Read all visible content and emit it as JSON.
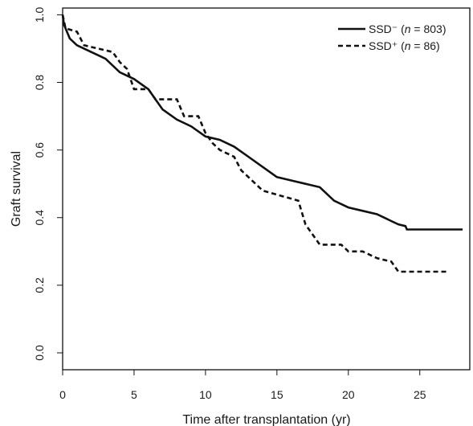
{
  "chart_data": {
    "type": "line",
    "xlabel": "Time after transplantation (yr)",
    "ylabel": "Graft survival",
    "xlim": [
      0,
      28.5
    ],
    "ylim": [
      -0.05,
      1.02
    ],
    "x_ticks": [
      "0",
      "5",
      "10",
      "15",
      "20",
      "25"
    ],
    "y_ticks": [
      "0.0",
      "0.2",
      "0.4",
      "0.6",
      "0.8",
      "1.0"
    ],
    "legend_position": "top-right",
    "series": [
      {
        "name": "SSD⁻",
        "legend_prefix": "SSD⁻ (",
        "legend_n_label": "n",
        "legend_suffix": " = 803)",
        "line_style": "solid",
        "color": "#111111",
        "points": [
          [
            0.0,
            1.0
          ],
          [
            0.1,
            0.97
          ],
          [
            0.5,
            0.93
          ],
          [
            1.0,
            0.91
          ],
          [
            2.0,
            0.89
          ],
          [
            3.0,
            0.87
          ],
          [
            4.0,
            0.83
          ],
          [
            5.0,
            0.81
          ],
          [
            6.0,
            0.78
          ],
          [
            6.5,
            0.75
          ],
          [
            7.0,
            0.72
          ],
          [
            8.0,
            0.69
          ],
          [
            9.0,
            0.67
          ],
          [
            10.0,
            0.64
          ],
          [
            11.0,
            0.63
          ],
          [
            12.0,
            0.61
          ],
          [
            13.0,
            0.58
          ],
          [
            14.0,
            0.55
          ],
          [
            15.0,
            0.52
          ],
          [
            16.0,
            0.51
          ],
          [
            17.0,
            0.5
          ],
          [
            18.0,
            0.49
          ],
          [
            19.0,
            0.45
          ],
          [
            20.0,
            0.43
          ],
          [
            21.0,
            0.42
          ],
          [
            22.0,
            0.41
          ],
          [
            22.5,
            0.4
          ],
          [
            23.0,
            0.39
          ],
          [
            23.5,
            0.38
          ],
          [
            24.0,
            0.375
          ],
          [
            24.1,
            0.365
          ],
          [
            28.0,
            0.365
          ]
        ]
      },
      {
        "name": "SSD⁺",
        "legend_prefix": "SSD⁺ (",
        "legend_n_label": "n",
        "legend_suffix": " = 86)",
        "line_style": "dashed",
        "color": "#111111",
        "points": [
          [
            0.0,
            1.0
          ],
          [
            0.2,
            0.96
          ],
          [
            1.0,
            0.95
          ],
          [
            1.5,
            0.91
          ],
          [
            3.5,
            0.89
          ],
          [
            4.0,
            0.86
          ],
          [
            4.5,
            0.84
          ],
          [
            5.0,
            0.78
          ],
          [
            6.0,
            0.78
          ],
          [
            6.5,
            0.75
          ],
          [
            8.0,
            0.75
          ],
          [
            8.5,
            0.7
          ],
          [
            9.5,
            0.7
          ],
          [
            10.0,
            0.65
          ],
          [
            10.5,
            0.62
          ],
          [
            11.0,
            0.6
          ],
          [
            12.0,
            0.58
          ],
          [
            12.5,
            0.54
          ],
          [
            13.5,
            0.5
          ],
          [
            14.0,
            0.48
          ],
          [
            16.5,
            0.45
          ],
          [
            17.0,
            0.38
          ],
          [
            17.5,
            0.35
          ],
          [
            18.0,
            0.32
          ],
          [
            19.5,
            0.32
          ],
          [
            20.0,
            0.3
          ],
          [
            21.0,
            0.3
          ],
          [
            22.0,
            0.28
          ],
          [
            23.0,
            0.27
          ],
          [
            23.5,
            0.24
          ],
          [
            27.0,
            0.24
          ]
        ]
      }
    ]
  }
}
